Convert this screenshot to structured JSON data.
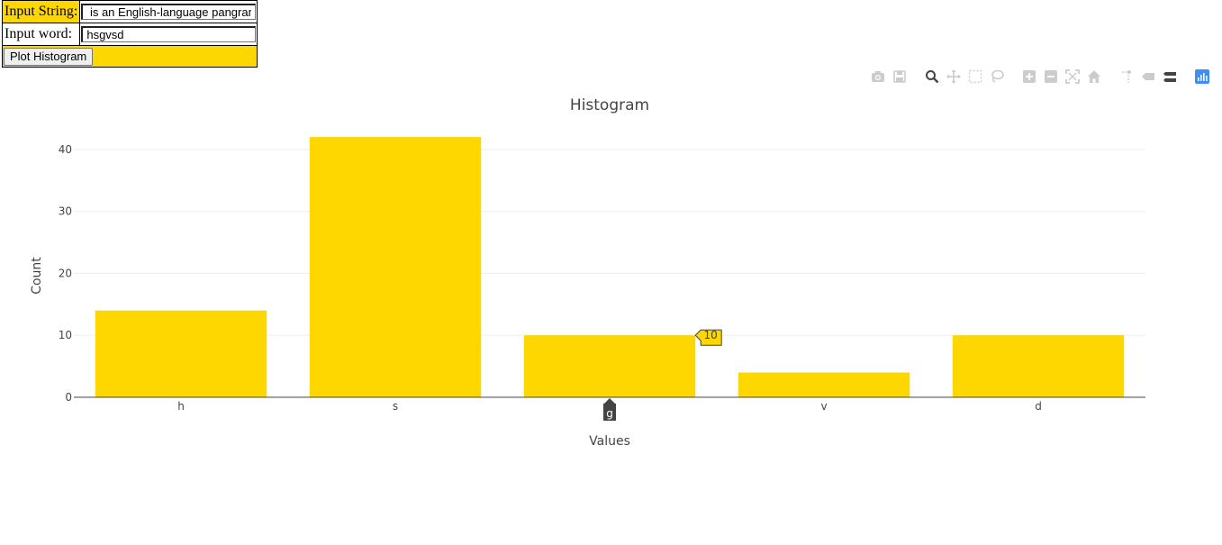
{
  "form": {
    "string_label": "Input String:",
    "string_value": " is an English-language pangram—",
    "word_label": "Input word:",
    "word_value": "hsgvsd",
    "plot_button_label": "Plot Histogram"
  },
  "modebar": {
    "icons": [
      "camera-icon",
      "save-icon",
      "zoom-icon",
      "pan-icon",
      "box-select-icon",
      "lasso-select-icon",
      "zoom-in-icon",
      "zoom-out-icon",
      "autoscale-icon",
      "reset-axes-icon",
      "spike-lines-icon",
      "hover-closest-icon",
      "hover-compare-icon",
      "plotly-logo-icon"
    ],
    "active_color": "#444444",
    "inactive_color": "#cccccc",
    "logo_color": "#3f8ef2"
  },
  "colors": {
    "bar": "#FFD700",
    "grid": "#eeeeee",
    "axis_line": "#444444",
    "hover_dark": "#444444"
  },
  "chart_data": {
    "type": "bar",
    "title": "Histogram",
    "xlabel": "Values",
    "ylabel": "Count",
    "categories": [
      "h",
      "s",
      "g",
      "v",
      "d"
    ],
    "values": [
      14,
      42,
      10,
      4,
      10
    ],
    "ylim": [
      0,
      44.2
    ],
    "yticks": [
      0,
      10,
      20,
      30,
      40
    ],
    "grid": true,
    "hover": {
      "category": "g",
      "value_label": "10"
    }
  }
}
